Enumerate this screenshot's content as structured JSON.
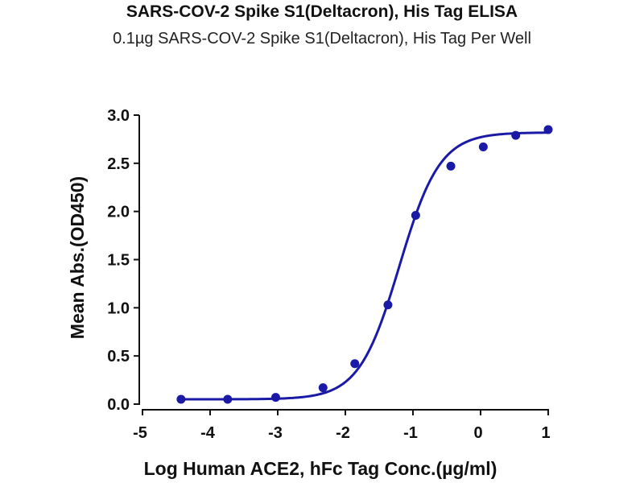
{
  "chart_data": {
    "type": "scatter",
    "title": "SARS-COV-2 Spike S1(Deltacron), His Tag ELISA",
    "subtitle": "0.1µg SARS-COV-2 Spike S1(Deltacron), His Tag Per Well",
    "xlabel": "Log Human ACE2, hFc Tag Conc.(µg/ml)",
    "ylabel": "Mean Abs.(OD450)",
    "xlim": [
      -5,
      1
    ],
    "ylim": [
      0,
      3.0
    ],
    "x_ticks": [
      -5,
      -4,
      -3,
      -2,
      -1,
      0,
      1
    ],
    "x_tick_labels": [
      "-5",
      "-4",
      "-3",
      "-2",
      "-1",
      "0",
      "1"
    ],
    "y_ticks": [
      0,
      0.5,
      1.0,
      1.5,
      2.0,
      2.5,
      3.0
    ],
    "y_tick_labels": [
      "0.0",
      "0.5",
      "1.0",
      "1.5",
      "2.0",
      "2.5",
      "3.0"
    ],
    "grid": false,
    "series": [
      {
        "x": [
          -4.43,
          -3.74,
          -3.03,
          -2.33,
          -1.86,
          -1.37,
          -0.96,
          -0.44,
          0.04,
          0.52,
          1.0
        ],
        "y": [
          0.05,
          0.05,
          0.07,
          0.17,
          0.42,
          1.03,
          1.96,
          2.47,
          2.67,
          2.79,
          2.85
        ],
        "color": "#1a1aa6",
        "fit": {
          "model": "4PL",
          "bottom": 0.05,
          "top": 2.82,
          "log_ec50": -1.2,
          "hill_slope": 1.45
        }
      }
    ]
  }
}
